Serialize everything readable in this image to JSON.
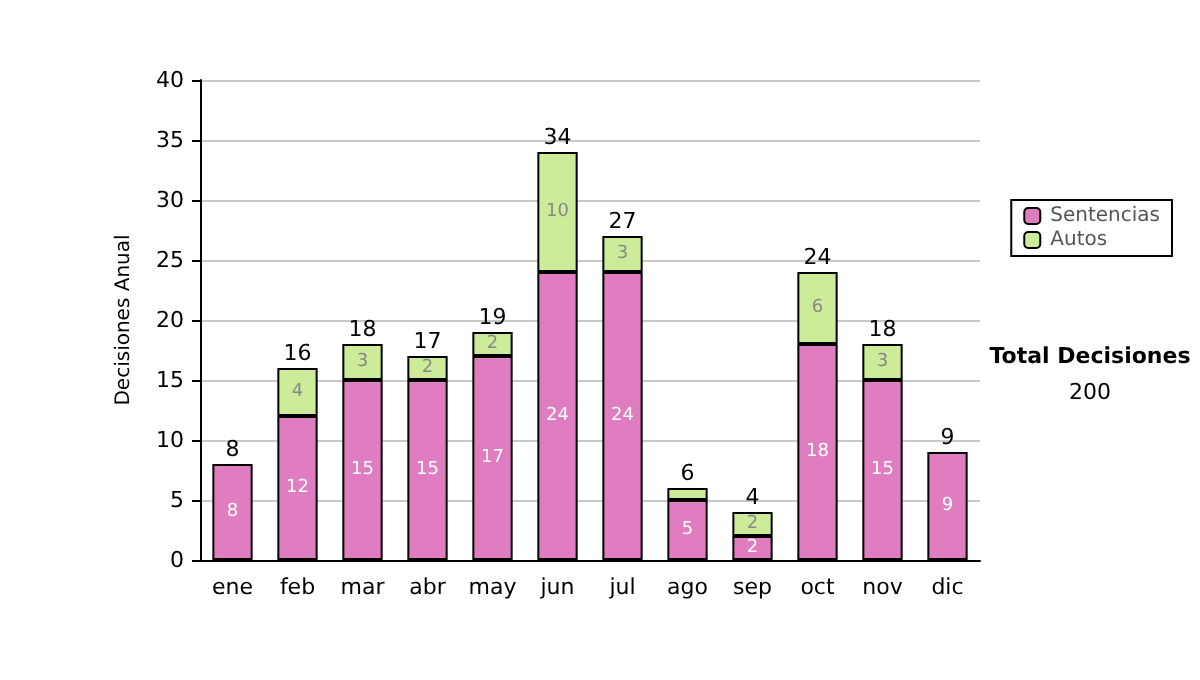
{
  "chart_data": {
    "type": "bar",
    "stacked": true,
    "ylabel": "Decisiones Anual",
    "categories": [
      "ene",
      "feb",
      "mar",
      "abr",
      "may",
      "jun",
      "jul",
      "ago",
      "sep",
      "oct",
      "nov",
      "dic"
    ],
    "series": [
      {
        "name": "Sentencias",
        "color": "#e07cc0",
        "values": [
          8,
          12,
          15,
          15,
          17,
          24,
          24,
          5,
          2,
          18,
          15,
          9
        ],
        "value_labels": [
          "8",
          "12",
          "15",
          "15",
          "17",
          "24",
          "24",
          "5",
          "2",
          "18",
          "15",
          "9"
        ]
      },
      {
        "name": "Autos",
        "color": "#ccec99",
        "values": [
          0,
          4,
          3,
          2,
          2,
          10,
          3,
          1,
          2,
          6,
          3,
          0
        ],
        "value_labels": [
          null,
          "4",
          "3",
          "2",
          "2",
          "10",
          "3",
          null,
          "2",
          "6",
          "3",
          null
        ]
      }
    ],
    "totals": [
      "8",
      "16",
      "18",
      "17",
      "19",
      "34",
      "27",
      "6",
      "4",
      "24",
      "18",
      "9"
    ],
    "ylim": [
      0,
      40
    ],
    "yticks": [
      0,
      5,
      10,
      15,
      20,
      25,
      30,
      35,
      40
    ],
    "grid": "y",
    "legend": "right",
    "annotations": [
      "Total Decisiones",
      "200"
    ]
  }
}
